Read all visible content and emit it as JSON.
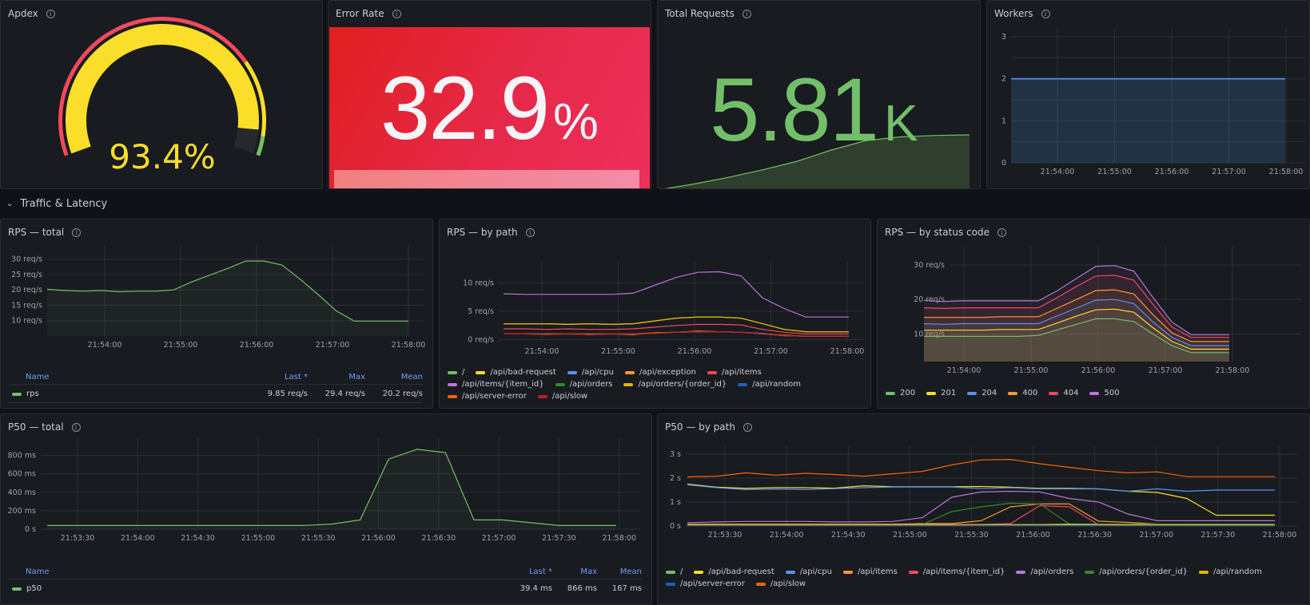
{
  "panels": {
    "apdex": {
      "title": "Apdex",
      "value": "93.4%",
      "fraction": 0.934,
      "color": "#fade2a"
    },
    "error_rate": {
      "title": "Error Rate",
      "value": "32.9",
      "unit": "%"
    },
    "total_requests": {
      "title": "Total Requests",
      "value": "5.81",
      "unit": "K"
    },
    "workers": {
      "title": "Workers"
    }
  },
  "section": {
    "title": "Traffic & Latency",
    "chevron": "chevron-down-icon"
  },
  "rps_total": {
    "title": "RPS — total",
    "legend_headers": {
      "name": "Name",
      "last": "Last *",
      "max": "Max",
      "mean": "Mean"
    },
    "legend_row": {
      "name": "rps",
      "last": "9.85 req/s",
      "max": "29.4 req/s",
      "mean": "20.2 req/s",
      "color": "#73bf69"
    }
  },
  "rps_path": {
    "title": "RPS — by path"
  },
  "rps_status": {
    "title": "RPS — by status code"
  },
  "p50_total": {
    "title": "P50 — total",
    "legend_headers": {
      "name": "Name",
      "last": "Last *",
      "max": "Max",
      "mean": "Mean"
    },
    "legend_row": {
      "name": "p50",
      "last": "39.4 ms",
      "max": "866 ms",
      "mean": "167 ms",
      "color": "#73bf69"
    }
  },
  "p50_path": {
    "title": "P50 — by path"
  },
  "chart_data": [
    {
      "id": "workers",
      "type": "area",
      "title": "Workers",
      "x": [
        "21:53:12",
        "21:58:00"
      ],
      "xticks": [
        "21:54:00",
        "21:55:00",
        "21:56:00",
        "21:57:00",
        "21:58:00"
      ],
      "yticks": [
        "0",
        "1",
        "2",
        "3"
      ],
      "ylim": [
        0,
        3
      ],
      "series": [
        {
          "name": "workers",
          "color": "#5794f2",
          "values": [
            2,
            2
          ]
        }
      ]
    },
    {
      "id": "total_requests_spark",
      "type": "area",
      "series": [
        {
          "name": "total",
          "color": "#73bf69",
          "values": [
            0,
            0.6,
            1.3,
            2.1,
            3.0,
            4.2,
            5.2,
            5.6,
            5.75,
            5.81
          ]
        }
      ]
    },
    {
      "id": "rps_total",
      "type": "line",
      "title": "RPS — total",
      "ylim": [
        5,
        32
      ],
      "xticks": [
        "21:54:00",
        "21:55:00",
        "21:56:00",
        "21:57:00",
        "21:58:00"
      ],
      "yticks": [
        "10 req/s",
        "15 req/s",
        "20 req/s",
        "25 req/s",
        "30 req/s"
      ],
      "ytick_values": [
        10,
        15,
        20,
        25,
        30
      ],
      "x_minutes": [
        0,
        0.25,
        0.5,
        0.75,
        1,
        1.25,
        1.5,
        1.75,
        2,
        2.25,
        2.5,
        2.75,
        3,
        3.25,
        3.5,
        3.75,
        4,
        4.25,
        4.5,
        4.75,
        5
      ],
      "series": [
        {
          "name": "rps",
          "color": "#73bf69",
          "values": [
            20.2,
            19.8,
            19.6,
            19.8,
            19.4,
            19.6,
            19.6,
            20.0,
            22.6,
            24.8,
            27.0,
            29.4,
            29.4,
            28.1,
            23.5,
            18.5,
            13.2,
            9.85,
            9.85,
            9.85,
            9.85
          ]
        }
      ]
    },
    {
      "id": "rps_path",
      "type": "line",
      "title": "RPS — by path",
      "ylim": [
        -0.5,
        12.5
      ],
      "xticks": [
        "21:54:00",
        "21:55:00",
        "21:56:00",
        "21:57:00",
        "21:58:00"
      ],
      "yticks": [
        "0 req/s",
        "5 req/s",
        "10 req/s"
      ],
      "ytick_values": [
        0,
        5,
        10
      ],
      "series": [
        {
          "name": "/",
          "color": "#73bf69",
          "values": [
            1.0,
            1.0,
            0.9,
            1.0,
            0.9,
            1.0,
            1.0,
            1.1,
            1.3,
            1.4,
            1.4,
            1.3,
            1.1,
            0.7,
            0.6,
            0.6,
            0.6
          ]
        },
        {
          "name": "/api/bad-request",
          "color": "#fade2a",
          "values": [
            2.8,
            2.8,
            2.8,
            2.7,
            2.8,
            2.7,
            2.8,
            3.3,
            3.8,
            4.0,
            4.0,
            3.8,
            2.8,
            1.8,
            1.4,
            1.4,
            1.4
          ]
        },
        {
          "name": "/api/cpu",
          "color": "#5794f2",
          "values": [
            1.0,
            1.0,
            1.0,
            1.0,
            1.0,
            1.0,
            1.0,
            1.2,
            1.3,
            1.4,
            1.4,
            1.3,
            1.1,
            0.7,
            0.6,
            0.6,
            0.6
          ]
        },
        {
          "name": "/api/exception",
          "color": "#ff9830",
          "values": [
            1.0,
            1.0,
            1.0,
            1.0,
            0.9,
            1.0,
            0.9,
            1.2,
            1.3,
            1.5,
            1.4,
            1.3,
            1.0,
            0.8,
            0.6,
            0.6,
            0.6
          ]
        },
        {
          "name": "/api/items",
          "color": "#f2495c",
          "values": [
            1.9,
            1.9,
            1.8,
            1.9,
            1.8,
            1.8,
            1.9,
            2.2,
            2.5,
            2.7,
            2.7,
            2.6,
            1.8,
            1.3,
            1.0,
            1.0,
            1.0
          ]
        },
        {
          "name": "/api/items/{item_id}",
          "color": "#b877d9",
          "values": [
            8.1,
            8.0,
            8.0,
            8.0,
            8.0,
            8.0,
            8.2,
            9.6,
            11.0,
            11.9,
            12.0,
            11.3,
            7.4,
            5.5,
            4.0,
            4.0,
            4.0
          ]
        },
        {
          "name": "/api/orders",
          "color": "#37872d",
          "values": [
            1.0,
            1.0,
            1.0,
            1.0,
            1.0,
            1.0,
            1.0,
            1.2,
            1.3,
            1.4,
            1.4,
            1.3,
            1.0,
            0.7,
            0.6,
            0.6,
            0.6
          ]
        },
        {
          "name": "/api/orders/{order_id}",
          "color": "#e0b400",
          "values": [
            2.8,
            2.8,
            2.8,
            2.7,
            2.8,
            2.7,
            2.8,
            3.3,
            3.8,
            4.0,
            4.0,
            3.8,
            2.8,
            1.8,
            1.4,
            1.4,
            1.4
          ]
        },
        {
          "name": "/api/random",
          "color": "#1f60c4",
          "values": [
            1.0,
            1.0,
            1.0,
            1.0,
            1.0,
            1.0,
            1.0,
            1.2,
            1.3,
            1.4,
            1.4,
            1.3,
            1.0,
            0.7,
            0.6,
            0.6,
            0.6
          ]
        },
        {
          "name": "/api/server-error",
          "color": "#fa6400",
          "values": [
            1.0,
            1.0,
            1.0,
            1.0,
            1.0,
            1.0,
            1.0,
            1.2,
            1.3,
            1.4,
            1.4,
            1.3,
            1.0,
            0.7,
            0.6,
            0.6,
            0.6
          ]
        },
        {
          "name": "/api/slow",
          "color": "#c4162a",
          "values": [
            1.0,
            1.0,
            0.9,
            1.0,
            0.9,
            1.0,
            1.0,
            1.1,
            1.3,
            1.4,
            1.4,
            1.3,
            1.0,
            0.7,
            0.6,
            0.6,
            0.6
          ]
        }
      ]
    },
    {
      "id": "rps_status",
      "type": "area",
      "stacked": true,
      "title": "RPS — by status code",
      "ylim": [
        2,
        33
      ],
      "xticks": [
        "21:54:00",
        "21:55:00",
        "21:56:00",
        "21:57:00",
        "21:58:00"
      ],
      "yticks": [
        "10 req/s",
        "20 req/s",
        "30 req/s"
      ],
      "ytick_values": [
        10,
        20,
        30
      ],
      "series": [
        {
          "name": "200",
          "color": "#73bf69",
          "values": [
            9.3,
            9.3,
            9.3,
            9.3,
            9.3,
            9.3,
            9.6,
            11.2,
            12.8,
            14.4,
            14.4,
            13.6,
            10.0,
            6.6,
            4.6,
            4.6,
            4.6
          ]
        },
        {
          "name": "201",
          "color": "#fade2a",
          "values": [
            11.1,
            11.1,
            11.1,
            11.1,
            11.3,
            11.3,
            11.3,
            13.2,
            15.2,
            17.0,
            17.2,
            16.3,
            11.8,
            7.8,
            5.6,
            5.6,
            5.6
          ]
        },
        {
          "name": "204",
          "color": "#5794f2",
          "values": [
            13.0,
            12.8,
            13.0,
            13.0,
            13.0,
            13.0,
            13.0,
            15.3,
            17.5,
            19.8,
            20.0,
            18.8,
            13.5,
            9.0,
            6.6,
            6.6,
            6.6
          ]
        },
        {
          "name": "400",
          "color": "#ff9830",
          "values": [
            14.8,
            14.8,
            14.8,
            14.8,
            15.0,
            15.0,
            15.0,
            17.5,
            20.0,
            22.6,
            22.8,
            21.6,
            15.6,
            10.3,
            7.8,
            7.8,
            7.8
          ]
        },
        {
          "name": "404",
          "color": "#f2495c",
          "values": [
            17.6,
            17.4,
            17.6,
            17.6,
            17.6,
            17.6,
            17.6,
            20.6,
            23.8,
            26.8,
            27.0,
            25.6,
            18.6,
            12.0,
            9.0,
            9.0,
            9.0
          ]
        },
        {
          "name": "500",
          "color": "#b877d9",
          "values": [
            19.8,
            19.4,
            19.6,
            19.6,
            19.6,
            19.6,
            19.6,
            22.6,
            26.1,
            29.6,
            29.8,
            28.2,
            20.6,
            13.4,
            9.8,
            9.8,
            9.8
          ]
        }
      ]
    },
    {
      "id": "p50_total",
      "type": "line",
      "title": "P50 — total",
      "ylim": [
        0,
        900
      ],
      "xticks": [
        "21:53:30",
        "21:54:00",
        "21:54:30",
        "21:55:00",
        "21:55:30",
        "21:56:00",
        "21:56:30",
        "21:57:00",
        "21:57:30",
        "21:58:00"
      ],
      "yticks": [
        "0 s",
        "200 ms",
        "400 ms",
        "600 ms",
        "800 ms"
      ],
      "ytick_values": [
        0,
        200,
        400,
        600,
        800
      ],
      "series": [
        {
          "name": "p50",
          "color": "#73bf69",
          "values": [
            39.4,
            39.4,
            39.4,
            39.4,
            39.4,
            39.4,
            39.4,
            39.4,
            39.4,
            39.4,
            55,
            100,
            760,
            866,
            830,
            100,
            100,
            70,
            39.4,
            39.4,
            39.4
          ]
        }
      ]
    },
    {
      "id": "p50_path",
      "type": "line",
      "title": "P50 — by path",
      "ylim": [
        0,
        3
      ],
      "xticks": [
        "21:53:30",
        "21:54:00",
        "21:54:30",
        "21:55:00",
        "21:55:30",
        "21:56:00",
        "21:56:30",
        "21:57:00",
        "21:57:30",
        "21:58:00"
      ],
      "yticks": [
        "0 s",
        "1 s",
        "2 s",
        "3 s"
      ],
      "ytick_values": [
        0,
        1,
        2,
        3
      ],
      "series": [
        {
          "name": "/",
          "color": "#73bf69",
          "values": [
            0.05,
            0.05,
            0.05,
            0.05,
            0.05,
            0.05,
            0.05,
            0.05,
            0.05,
            0.05,
            0.05,
            0.05,
            0.05,
            0.05,
            0.05,
            0.05,
            0.05,
            0.05,
            0.05,
            0.05,
            0.05
          ]
        },
        {
          "name": "/api/bad-request",
          "color": "#fade2a",
          "values": [
            1.75,
            1.62,
            1.57,
            1.6,
            1.6,
            1.58,
            1.68,
            1.64,
            1.64,
            1.64,
            1.65,
            1.62,
            1.57,
            1.57,
            1.55,
            1.45,
            1.4,
            1.15,
            0.45,
            0.45,
            0.45
          ]
        },
        {
          "name": "/api/cpu",
          "color": "#5794f2",
          "values": [
            1.72,
            1.6,
            1.52,
            1.54,
            1.52,
            1.56,
            1.6,
            1.63,
            1.63,
            1.63,
            1.56,
            1.6,
            1.55,
            1.55,
            1.55,
            1.45,
            1.55,
            1.45,
            1.5,
            1.5,
            1.5
          ]
        },
        {
          "name": "/api/items",
          "color": "#ff9830",
          "values": [
            0.08,
            0.08,
            0.08,
            0.08,
            0.08,
            0.08,
            0.08,
            0.08,
            0.1,
            0.1,
            0.22,
            0.8,
            0.92,
            0.92,
            0.2,
            0.15,
            0.08,
            0.05,
            0.05,
            0.05,
            0.05
          ]
        },
        {
          "name": "/api/items/{item_id}",
          "color": "#f2495c",
          "values": [
            0.02,
            0.02,
            0.02,
            0.02,
            0.02,
            0.02,
            0.02,
            0.02,
            0.02,
            0.03,
            0.06,
            0.1,
            0.85,
            0.8,
            0.05,
            0.05,
            0.05,
            0.05,
            0.05,
            0.05,
            0.05
          ]
        },
        {
          "name": "/api/orders",
          "color": "#b877d9",
          "values": [
            0.14,
            0.17,
            0.19,
            0.19,
            0.19,
            0.17,
            0.17,
            0.19,
            0.35,
            1.2,
            1.42,
            1.45,
            1.42,
            1.15,
            1.0,
            0.5,
            0.22,
            0.22,
            0.22,
            0.22,
            0.22
          ]
        },
        {
          "name": "/api/orders/{order_id}",
          "color": "#37872d",
          "values": [
            0.06,
            0.06,
            0.06,
            0.06,
            0.06,
            0.06,
            0.06,
            0.06,
            0.06,
            0.6,
            0.8,
            0.95,
            0.92,
            0.08,
            0.08,
            0.08,
            0.08,
            0.08,
            0.08,
            0.08,
            0.08
          ]
        },
        {
          "name": "/api/random",
          "color": "#e0b400",
          "values": [
            0.06,
            0.06,
            0.06,
            0.06,
            0.06,
            0.06,
            0.06,
            0.06,
            0.06,
            0.06,
            0.06,
            0.06,
            0.06,
            0.08,
            0.06,
            0.05,
            0.05,
            0.05,
            0.05,
            0.05,
            0.05
          ]
        },
        {
          "name": "/api/server-error",
          "color": "#1f60c4",
          "values": [
            0.01,
            0.01,
            0.01,
            0.01,
            0.01,
            0.01,
            0.01,
            0.01,
            0.01,
            0.01,
            0.01,
            0.01,
            0.01,
            0.01,
            0.01,
            0.01,
            0.01,
            0.01,
            0.01,
            0.01,
            0.01
          ]
        },
        {
          "name": "/api/slow",
          "color": "#fa6400",
          "values": [
            2.05,
            2.08,
            2.22,
            2.12,
            2.2,
            2.15,
            2.08,
            2.18,
            2.28,
            2.55,
            2.76,
            2.78,
            2.6,
            2.45,
            2.31,
            2.22,
            2.26,
            2.06,
            2.06,
            2.06,
            2.06
          ]
        }
      ]
    }
  ]
}
